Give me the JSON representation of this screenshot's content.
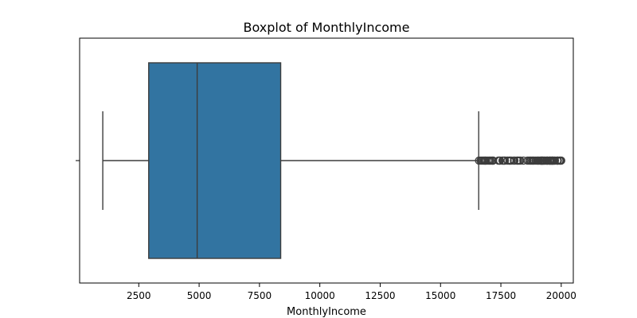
{
  "chart_data": {
    "type": "boxplot",
    "title": "Boxplot of MonthlyIncome",
    "xlabel": "MonthlyIncome",
    "ylabel": "",
    "xlim": [
      50,
      20500
    ],
    "xticks": [
      2500,
      5000,
      7500,
      10000,
      12500,
      15000,
      17500,
      20000
    ],
    "orientation": "horizontal",
    "box": {
      "whisker_low": 1009,
      "q1": 2911,
      "median": 4919,
      "q3": 8379,
      "whisker_high": 16581
    },
    "outliers": [
      16595,
      16659,
      16704,
      16756,
      16799,
      16823,
      16856,
      16872,
      16885,
      16959,
      17007,
      17048,
      17068,
      17123,
      17159,
      17169,
      17174,
      17399,
      17426,
      17444,
      17465,
      17567,
      17584,
      17603,
      17639,
      17650,
      17665,
      17779,
      17856,
      17861,
      17875,
      17924,
      18041,
      18061,
      18172,
      18200,
      18213,
      18265,
      18303,
      18430,
      18606,
      18665,
      18722,
      18740,
      18789,
      18824,
      18844,
      18880,
      18947,
      19002,
      19033,
      19045,
      19081,
      19141,
      19144,
      19161,
      19187,
      19189,
      19197,
      19202,
      19232,
      19237,
      19246,
      19272,
      19293,
      19328,
      19331,
      19392,
      19406,
      19419,
      19431,
      19436,
      19502,
      19513,
      19517,
      19537,
      19545,
      19566,
      19586,
      19613,
      19626,
      19627,
      19636,
      19658,
      19665,
      19701,
      19717,
      19740,
      19833,
      19845,
      19847,
      19859,
      19926,
      19943,
      19973,
      19999
    ],
    "colors": {
      "box_fill": "#3274a1",
      "line": "#3d3d3d",
      "axes": "#000000"
    },
    "grid": false
  }
}
